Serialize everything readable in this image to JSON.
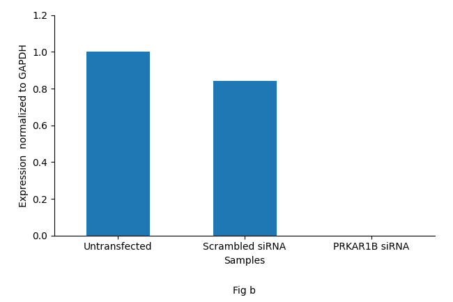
{
  "chart_data": {
    "type": "bar",
    "categories": [
      "Untransfected",
      "Scrambled siRNA",
      "PRKAR1B siRNA"
    ],
    "values": [
      1.0,
      0.84,
      0.0
    ],
    "xlabel": "Samples",
    "ylabel": "Expression  normalized to GAPDH",
    "ylim": [
      0,
      1.2
    ],
    "yticks": [
      {
        "value": 0,
        "label": "0.0"
      },
      0.2,
      0.4,
      0.6,
      0.8,
      {
        "value": 1.0,
        "label": "1.0"
      },
      1.2
    ],
    "annotation": "Fig b",
    "grid": false
  }
}
